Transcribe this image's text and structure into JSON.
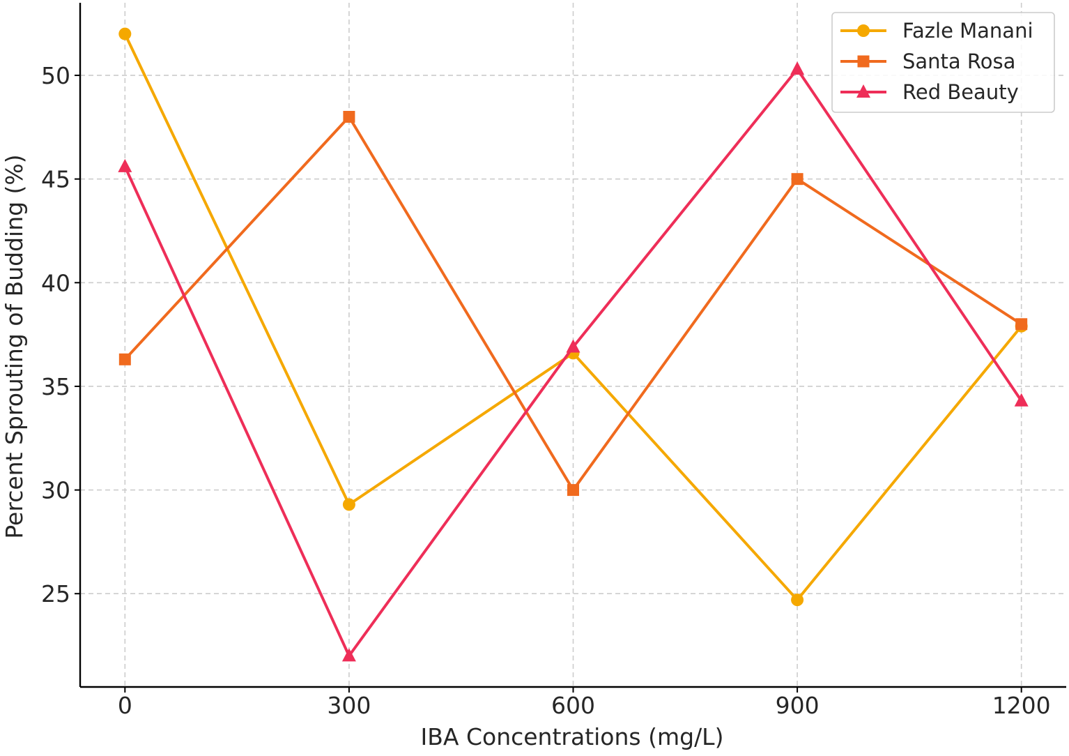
{
  "chart_data": {
    "type": "line",
    "title": "",
    "xlabel": "IBA Concentrations (mg/L)",
    "ylabel": "Percent Sprouting of Budding (%)",
    "x": [
      0,
      300,
      600,
      900,
      1200
    ],
    "x_tick_labels": [
      "0",
      "300",
      "600",
      "900",
      "1200"
    ],
    "xlim": [
      -60,
      1260
    ],
    "y_ticks": [
      25,
      30,
      35,
      40,
      45,
      50
    ],
    "y_tick_labels": [
      "25",
      "30",
      "35",
      "40",
      "45",
      "50"
    ],
    "ylim": [
      20.5,
      53.5
    ],
    "grid": true,
    "legend_position": "top-right",
    "series": [
      {
        "name": "Fazle Manani",
        "color": "#F5A800",
        "marker": "circle",
        "values": [
          52.0,
          29.3,
          36.6,
          24.7,
          37.9
        ]
      },
      {
        "name": "Santa Rosa",
        "color": "#F06A1E",
        "marker": "square",
        "values": [
          36.3,
          48.0,
          30.0,
          45.0,
          38.0
        ]
      },
      {
        "name": "Red Beauty",
        "color": "#EE2E58",
        "marker": "triangle",
        "values": [
          45.6,
          22.0,
          36.9,
          50.3,
          34.3
        ]
      }
    ]
  }
}
